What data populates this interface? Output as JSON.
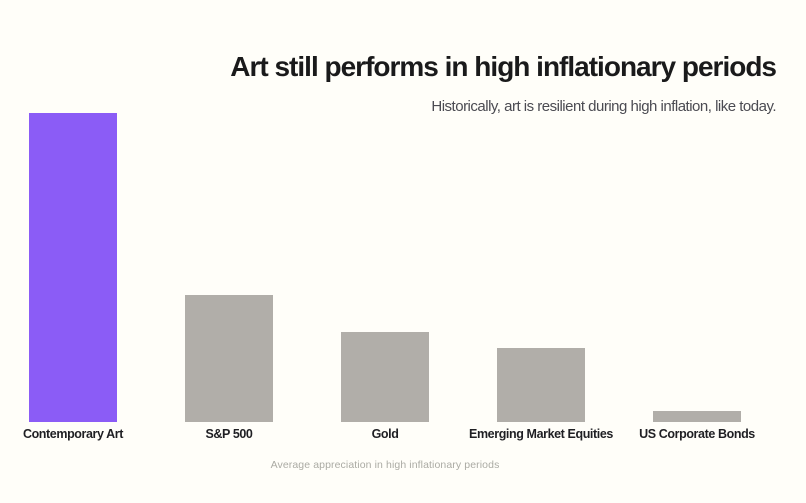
{
  "page": {
    "background_color": "#FFFEF9"
  },
  "header": {
    "title": "Art still performs in high inflationary periods",
    "subtitle": "Historically, art is resilient during high inflation, like today."
  },
  "chart_data": {
    "type": "bar",
    "title": "Art still performs in high inflationary periods",
    "subtitle": "Historically, art is resilient during high inflation, like today.",
    "caption": "Average appreciation in high inflationary periods",
    "categories": [
      "Contemporary Art",
      "S&P 500",
      "Gold",
      "Emerging Market Equities",
      "US Corporate Bonds"
    ],
    "values": [
      1.0,
      0.41,
      0.29,
      0.24,
      0.036
    ],
    "value_note": "No numeric axis, gridlines or data labels are shown in the image; values are relative bar heights as a fraction of the tallest bar (Contemporary Art).",
    "highlight_category": "Contemporary Art",
    "colors": {
      "highlight": "#8B5CF6",
      "default": "#B1AEA9"
    },
    "xlabel": "",
    "ylabel": "",
    "axes_visible": false,
    "grid": false,
    "legend": false,
    "legend_position": "none"
  }
}
